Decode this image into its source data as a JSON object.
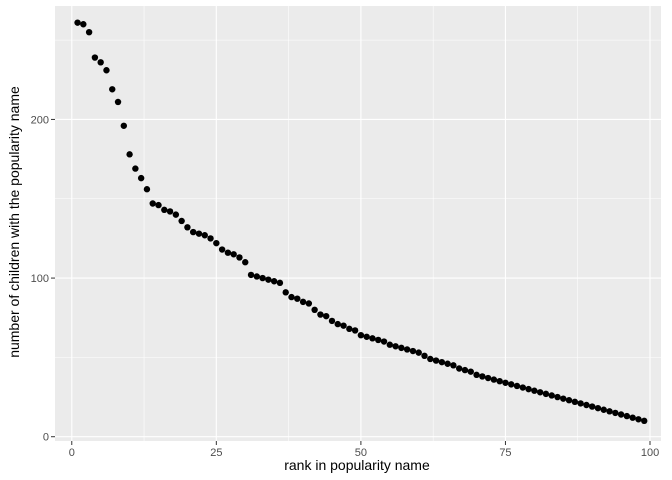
{
  "chart_data": {
    "type": "scatter",
    "xlabel": "rank in popularity name",
    "ylabel": "number of children with the popularity name",
    "xlim": [
      -2.9,
      101.9
    ],
    "ylim": [
      -2.7,
      271.5
    ],
    "x_ticks": [
      0,
      25,
      50,
      75,
      100
    ],
    "x_tick_labels": [
      "0",
      "25",
      "50",
      "75",
      "100"
    ],
    "y_ticks": [
      0,
      100,
      200
    ],
    "y_tick_labels": [
      "0",
      "100",
      "200"
    ],
    "grid": true,
    "theme": "ggplot2-grey",
    "point_color": "#000000",
    "series": [
      {
        "x": [
          1,
          2,
          3,
          4,
          5,
          6,
          7,
          8,
          9,
          10,
          11,
          12,
          13,
          14,
          15,
          16,
          17,
          18,
          19,
          20,
          21,
          22,
          23,
          24,
          25,
          26,
          27,
          28,
          29,
          30,
          31,
          32,
          33,
          34,
          35,
          36,
          37,
          38,
          39,
          40,
          41,
          42,
          43,
          44,
          45,
          46,
          47,
          48,
          49,
          50,
          51,
          52,
          53,
          54,
          55,
          56,
          57,
          58,
          59,
          60,
          61,
          62,
          63,
          64,
          65,
          66,
          67,
          68,
          69,
          70,
          71,
          72,
          73,
          74,
          75,
          76,
          77,
          78,
          79,
          80,
          81,
          82,
          83,
          84,
          85,
          86,
          87,
          88,
          89,
          90,
          91,
          92,
          93,
          94,
          95,
          96,
          97,
          98,
          99
        ],
        "y": [
          261,
          260,
          255,
          239,
          236,
          231,
          219,
          211,
          196,
          178,
          169,
          163,
          156,
          147,
          146,
          143,
          142,
          140,
          136,
          132,
          129,
          128,
          127,
          125,
          122,
          118,
          116,
          115,
          113,
          110,
          102,
          101,
          100,
          99,
          98,
          97,
          91,
          88,
          87,
          85,
          84,
          80,
          77,
          76,
          73,
          71,
          70,
          68,
          67,
          64,
          63,
          62,
          61,
          60,
          58,
          57,
          56,
          55,
          54,
          53,
          51,
          49,
          48,
          47,
          46,
          45,
          43,
          42,
          41,
          39,
          38,
          37,
          36,
          35,
          34,
          33,
          32,
          31,
          30,
          29,
          28,
          27,
          26,
          25,
          24,
          23,
          22,
          21,
          20,
          19,
          18,
          17,
          16,
          15,
          14,
          13,
          12,
          11,
          10
        ]
      }
    ]
  }
}
